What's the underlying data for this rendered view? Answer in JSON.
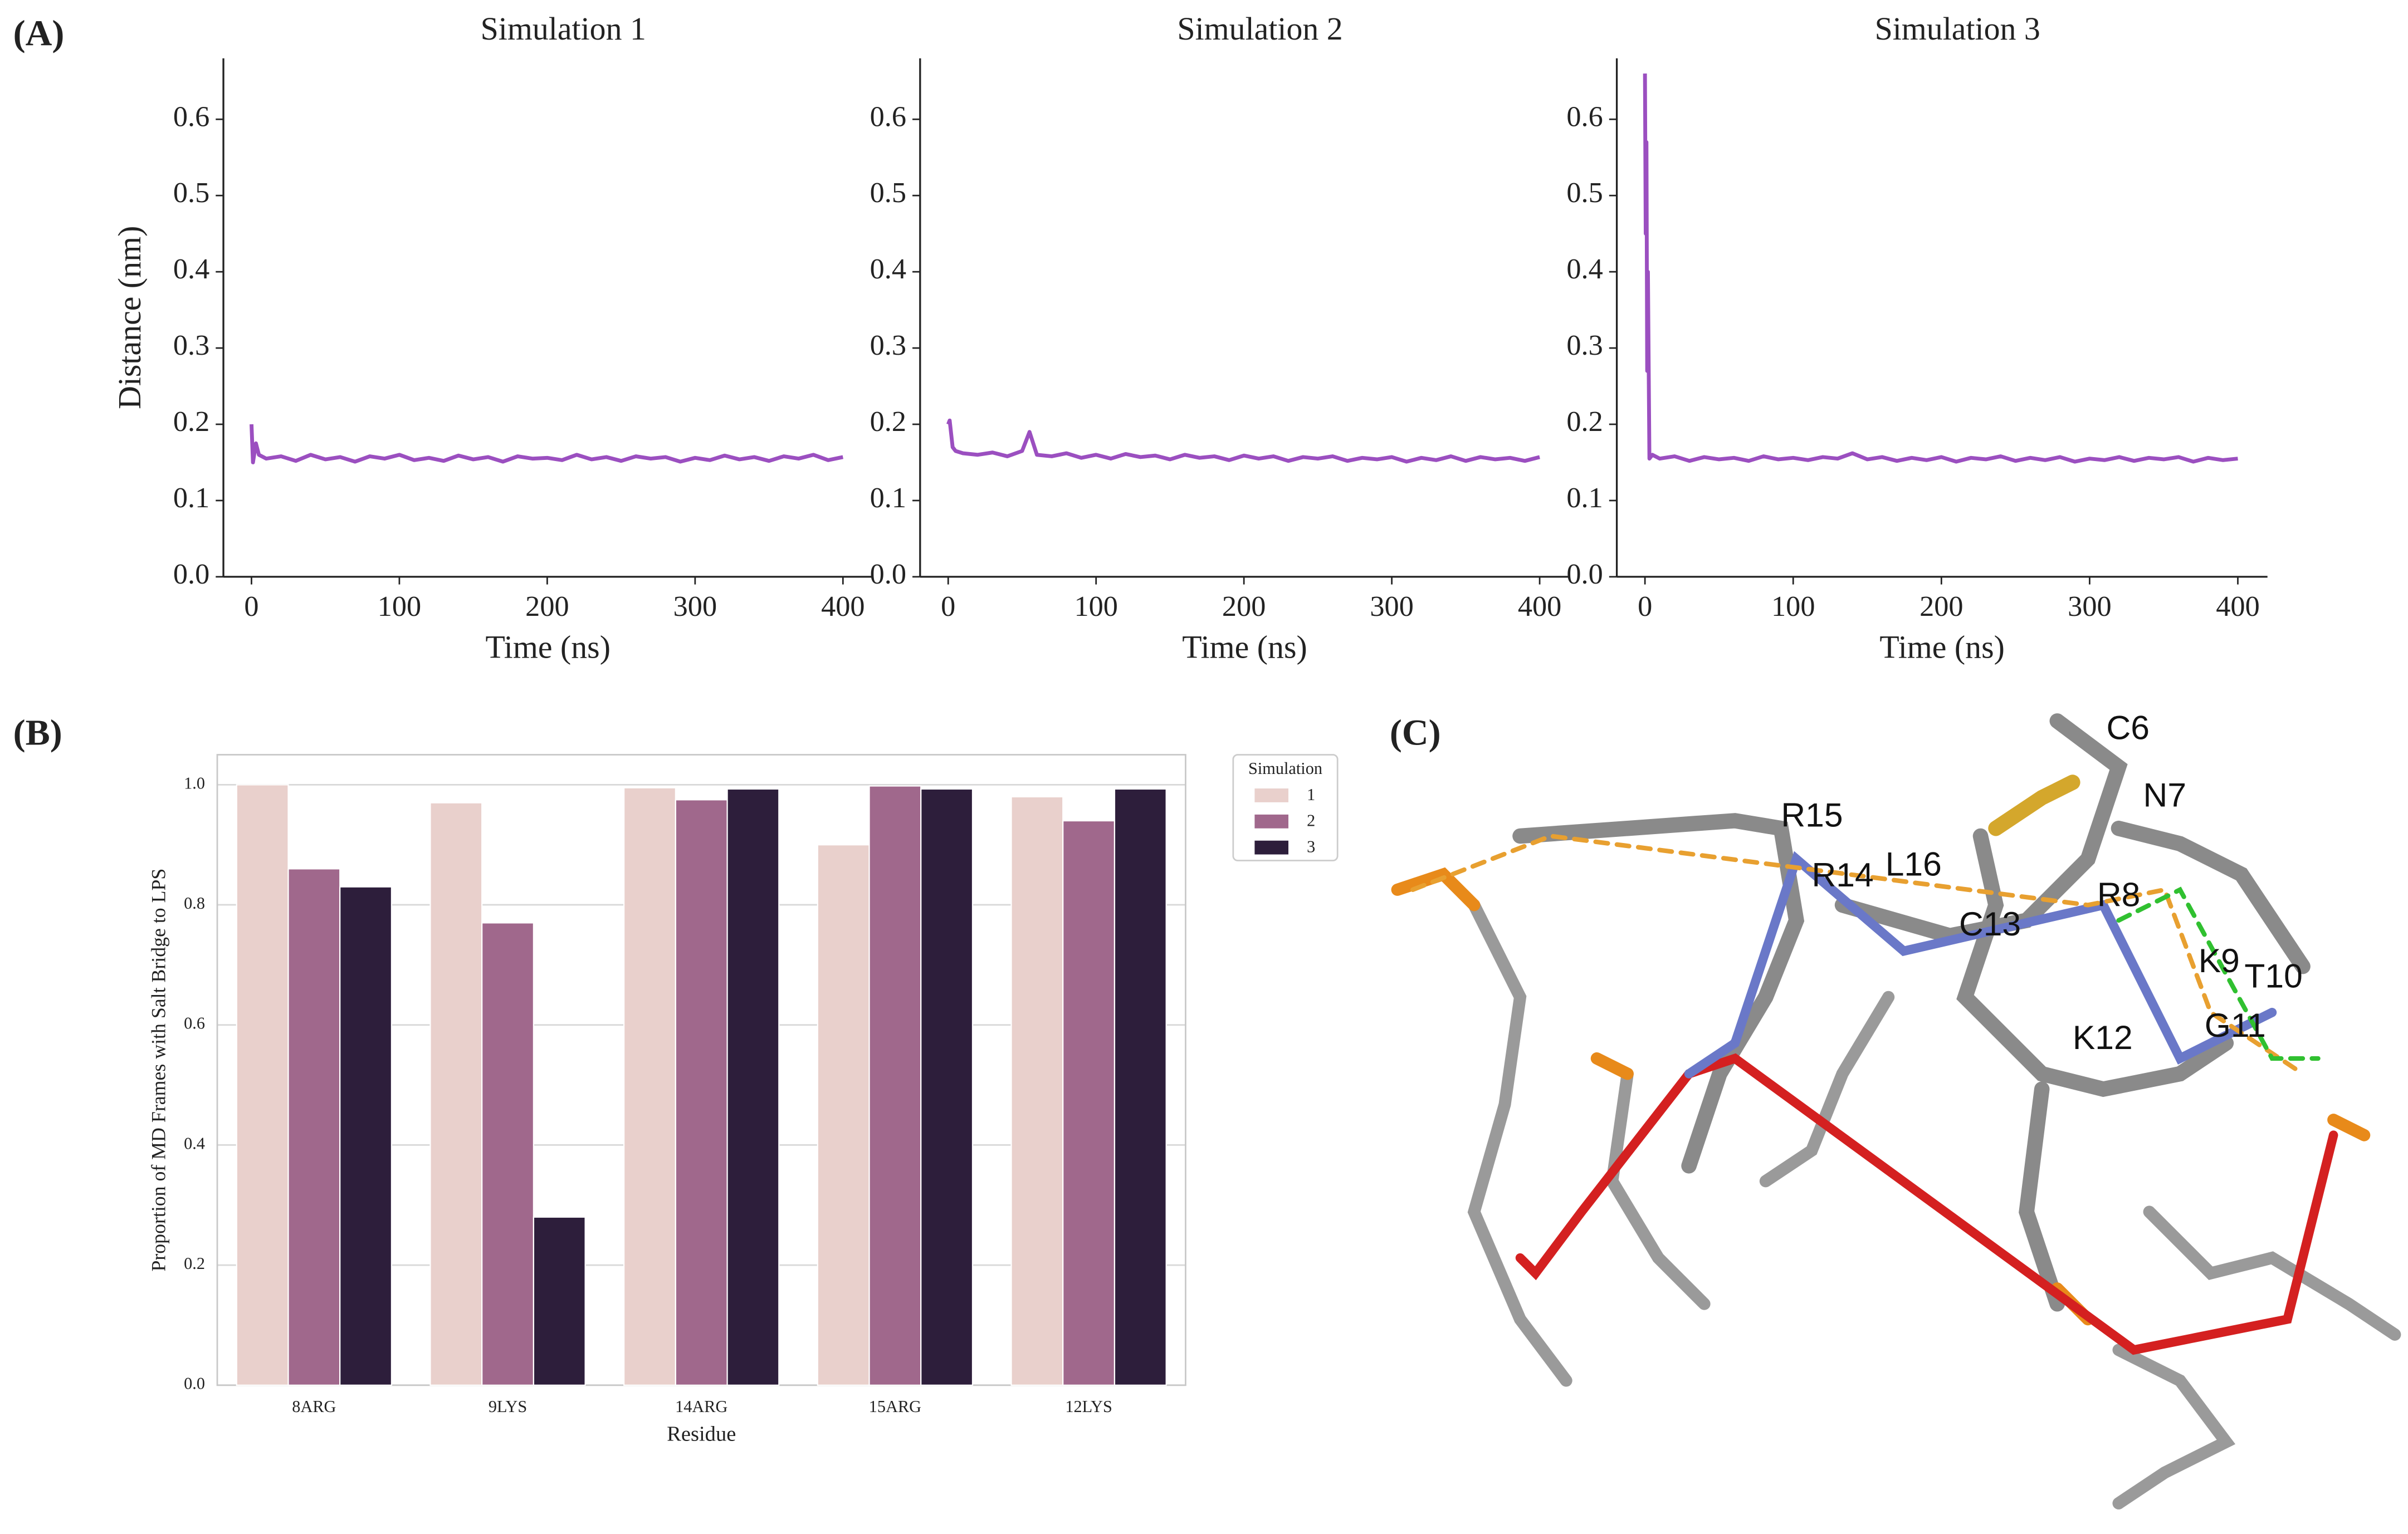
{
  "panel_labels": [
    "(A)",
    "(B)",
    "(C)"
  ],
  "chart_data": [
    {
      "type": "line",
      "title": "Simulation 1",
      "x_label": "Time (ns)",
      "y_label": "Distance (nm)",
      "x": [
        0,
        1,
        3,
        5,
        10,
        20,
        30,
        40,
        50,
        60,
        70,
        80,
        90,
        100,
        110,
        120,
        130,
        140,
        150,
        160,
        170,
        180,
        190,
        200,
        210,
        220,
        230,
        240,
        250,
        260,
        270,
        280,
        290,
        300,
        310,
        320,
        330,
        340,
        350,
        360,
        370,
        380,
        390,
        400
      ],
      "values": [
        0.2,
        0.15,
        0.175,
        0.16,
        0.155,
        0.158,
        0.152,
        0.16,
        0.154,
        0.157,
        0.151,
        0.158,
        0.155,
        0.16,
        0.153,
        0.156,
        0.152,
        0.159,
        0.154,
        0.157,
        0.151,
        0.158,
        0.155,
        0.156,
        0.153,
        0.16,
        0.154,
        0.157,
        0.152,
        0.158,
        0.155,
        0.157,
        0.151,
        0.156,
        0.153,
        0.159,
        0.154,
        0.157,
        0.152,
        0.158,
        0.155,
        0.16,
        0.153,
        0.157
      ],
      "color": "#9b4fc0",
      "xlim": [
        -19,
        420
      ],
      "ylim": [
        0,
        0.68
      ],
      "xticks": [
        0,
        100,
        200,
        300,
        400
      ],
      "yticks": [
        {
          "value": 0,
          "label": "0.0"
        },
        {
          "value": 0.1,
          "label": "0.1"
        },
        {
          "value": 0.2,
          "label": "0.2"
        },
        {
          "value": 0.3,
          "label": "0.3"
        },
        {
          "value": 0.4,
          "label": "0.4"
        },
        {
          "value": 0.5,
          "label": "0.5"
        },
        {
          "value": 0.6,
          "label": "0.6"
        }
      ]
    },
    {
      "type": "line",
      "title": "Simulation 2",
      "x_label": "Time (ns)",
      "x": [
        0,
        1,
        3,
        5,
        10,
        20,
        30,
        40,
        50,
        55,
        60,
        70,
        80,
        90,
        100,
        110,
        120,
        130,
        140,
        150,
        160,
        170,
        180,
        190,
        200,
        210,
        220,
        230,
        240,
        250,
        260,
        270,
        280,
        290,
        300,
        310,
        320,
        330,
        340,
        350,
        360,
        370,
        380,
        390,
        400
      ],
      "values": [
        0.2,
        0.205,
        0.17,
        0.165,
        0.162,
        0.16,
        0.163,
        0.158,
        0.165,
        0.19,
        0.16,
        0.158,
        0.162,
        0.156,
        0.16,
        0.155,
        0.161,
        0.157,
        0.159,
        0.154,
        0.16,
        0.156,
        0.158,
        0.153,
        0.159,
        0.155,
        0.158,
        0.152,
        0.157,
        0.155,
        0.158,
        0.152,
        0.156,
        0.154,
        0.157,
        0.151,
        0.156,
        0.153,
        0.158,
        0.152,
        0.157,
        0.154,
        0.156,
        0.152,
        0.157
      ],
      "color": "#9b4fc0",
      "xlim": [
        -19,
        420
      ],
      "ylim": [
        0,
        0.68
      ],
      "xticks": [
        0,
        100,
        200,
        300,
        400
      ]
    },
    {
      "type": "line",
      "title": "Simulation 3",
      "x_label": "Time (ns)",
      "x": [
        0,
        0.5,
        1,
        1.5,
        2,
        3,
        5,
        10,
        20,
        30,
        40,
        50,
        60,
        70,
        80,
        90,
        100,
        110,
        120,
        130,
        140,
        150,
        160,
        170,
        180,
        190,
        200,
        210,
        220,
        230,
        240,
        250,
        260,
        270,
        280,
        290,
        300,
        310,
        320,
        330,
        340,
        350,
        360,
        370,
        380,
        390,
        400
      ],
      "values": [
        0.66,
        0.45,
        0.57,
        0.27,
        0.4,
        0.155,
        0.16,
        0.155,
        0.158,
        0.152,
        0.157,
        0.154,
        0.156,
        0.152,
        0.158,
        0.154,
        0.156,
        0.153,
        0.157,
        0.155,
        0.162,
        0.154,
        0.157,
        0.152,
        0.156,
        0.153,
        0.157,
        0.151,
        0.156,
        0.154,
        0.158,
        0.152,
        0.156,
        0.153,
        0.157,
        0.151,
        0.155,
        0.153,
        0.157,
        0.152,
        0.156,
        0.154,
        0.157,
        0.151,
        0.156,
        0.153,
        0.155
      ],
      "color": "#9b4fc0",
      "xlim": [
        -19,
        420
      ],
      "ylim": [
        0,
        0.68
      ],
      "xticks": [
        0,
        100,
        200,
        300,
        400
      ]
    },
    {
      "type": "bar",
      "x_label": "Residue",
      "y_label": "Proportion of MD Frames with Salt Bridge to LPS",
      "categories": [
        "8ARG",
        "9LYS",
        "14ARG",
        "15ARG",
        "12LYS"
      ],
      "legend_title": "Simulation",
      "legend": "right",
      "series": [
        {
          "name": "1",
          "color": "#e9d0cc",
          "values": [
            1.0,
            0.97,
            0.995,
            0.9,
            0.98
          ]
        },
        {
          "name": "2",
          "color": "#a0688c",
          "values": [
            0.86,
            0.77,
            0.975,
            0.998,
            0.94
          ]
        },
        {
          "name": "3",
          "color": "#2d1e3b",
          "values": [
            0.83,
            0.28,
            0.993,
            0.993,
            0.993
          ]
        }
      ],
      "ylim": [
        0,
        1.05
      ],
      "grid": true,
      "yticks": [
        {
          "value": 0,
          "label": "0.0"
        },
        {
          "value": 0.2,
          "label": "0.2"
        },
        {
          "value": 0.4,
          "label": "0.4"
        },
        {
          "value": 0.6,
          "label": "0.6"
        },
        {
          "value": 0.8,
          "label": "0.8"
        },
        {
          "value": 1.0,
          "label": "1.0"
        }
      ]
    }
  ],
  "molecule_labels": [
    "C6",
    "N7",
    "R15",
    "R14",
    "L16",
    "C13",
    "R8",
    "K9",
    "T10",
    "K12",
    "G11"
  ]
}
